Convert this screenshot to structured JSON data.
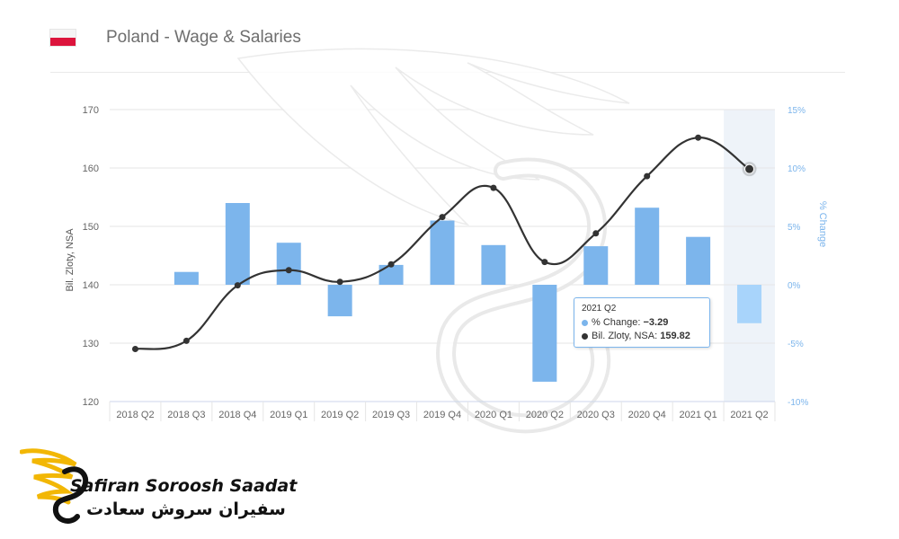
{
  "header": {
    "title": "Poland - Wage & Salaries",
    "flag_icon": "poland-flag-icon"
  },
  "colors": {
    "bar": "#7cb5ec",
    "bar_highlight": "#a8d4fb",
    "line": "#333333",
    "right_axis": "#7cb5ec",
    "highlight_band": "#eef3f9",
    "logo_gold": "#f2b705"
  },
  "chart_data": {
    "type": "bar+line",
    "categories": [
      "2018 Q2",
      "2018 Q3",
      "2018 Q4",
      "2019 Q1",
      "2019 Q2",
      "2019 Q3",
      "2019 Q4",
      "2020 Q1",
      "2020 Q2",
      "2020 Q3",
      "2020 Q4",
      "2021 Q1",
      "2021 Q2"
    ],
    "series": [
      {
        "name": "% Change",
        "type": "bar",
        "axis": "right",
        "values": [
          null,
          1.1,
          7.0,
          3.6,
          -2.7,
          1.7,
          5.5,
          3.4,
          -8.3,
          3.3,
          6.6,
          4.1,
          -3.29
        ]
      },
      {
        "name": "Bil. Zloty, NSA",
        "type": "line",
        "axis": "left",
        "values": [
          129.0,
          130.4,
          139.9,
          142.5,
          140.5,
          143.5,
          151.6,
          156.6,
          143.9,
          148.8,
          158.6,
          165.2,
          159.82
        ]
      }
    ],
    "y_left": {
      "label": "Bil. Zloty, NSA",
      "ticks": [
        "120",
        "130",
        "140",
        "150",
        "160",
        "170"
      ],
      "range": [
        120,
        170
      ]
    },
    "y_right": {
      "label": "% Change",
      "ticks": [
        "-10%",
        "-5%",
        "0%",
        "5%",
        "10%",
        "15%"
      ],
      "range": [
        -10,
        15
      ]
    },
    "highlighted_category": "2021 Q2",
    "grid": true
  },
  "tooltip": {
    "header": "2021 Q2",
    "row1_label": "% Change: ",
    "row1_value": "−3.29",
    "row2_label": "Bil. Zloty, NSA: ",
    "row2_value": "159.82"
  },
  "logo": {
    "text_en": "Safiran Soroosh Saadat",
    "text_fa": "سفیران سروش سعادت",
    "icon": "winged-logo-icon"
  }
}
